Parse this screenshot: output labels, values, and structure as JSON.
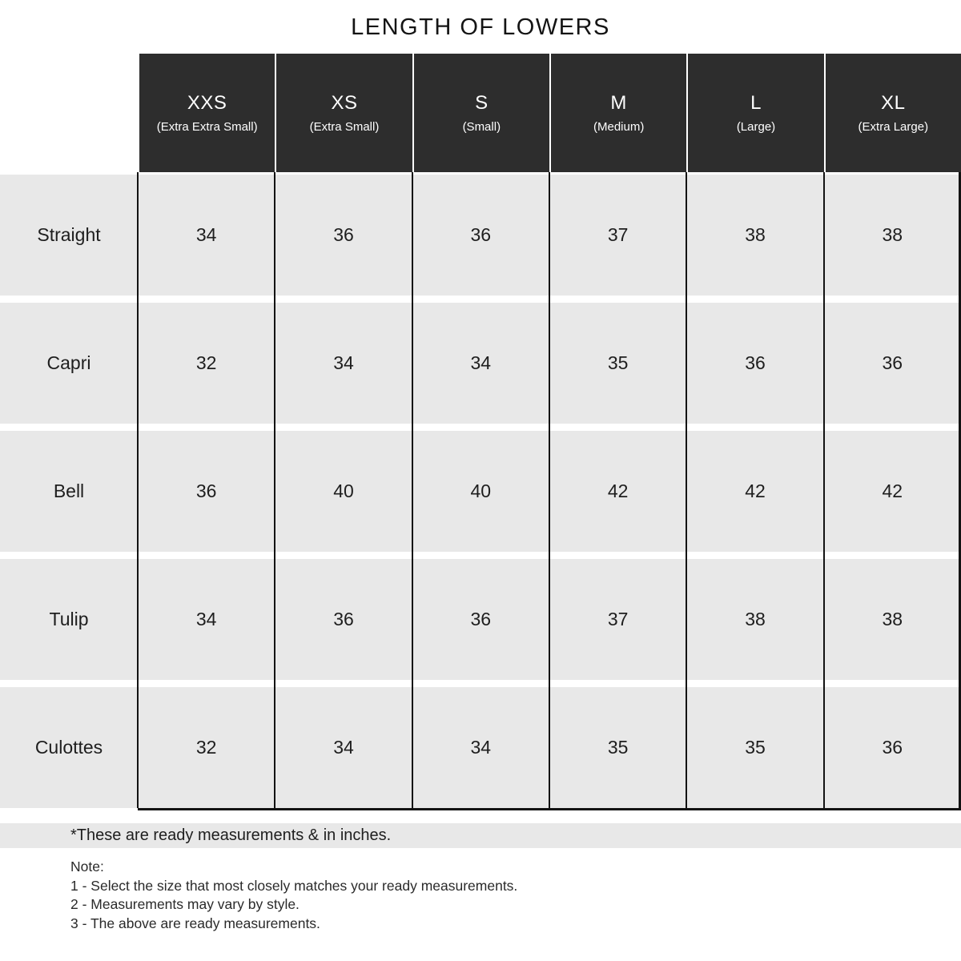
{
  "title": "LENGTH OF LOWERS",
  "table": {
    "columns": [
      {
        "size": "XXS",
        "full": "(Extra Extra Small)"
      },
      {
        "size": "XS",
        "full": "(Extra Small)"
      },
      {
        "size": "S",
        "full": "(Small)"
      },
      {
        "size": "M",
        "full": "(Medium)"
      },
      {
        "size": "L",
        "full": "(Large)"
      },
      {
        "size": "XL",
        "full": "(Extra Large)"
      }
    ],
    "rows": [
      {
        "label": "Straight",
        "values": [
          "34",
          "36",
          "36",
          "37",
          "38",
          "38"
        ]
      },
      {
        "label": "Capri",
        "values": [
          "32",
          "34",
          "34",
          "35",
          "36",
          "36"
        ]
      },
      {
        "label": "Bell",
        "values": [
          "36",
          "40",
          "40",
          "42",
          "42",
          "42"
        ]
      },
      {
        "label": "Tulip",
        "values": [
          "34",
          "36",
          "36",
          "37",
          "38",
          "38"
        ]
      },
      {
        "label": "Culottes",
        "values": [
          "32",
          "34",
          "34",
          "35",
          "35",
          "36"
        ]
      }
    ]
  },
  "footnote": "*These are ready measurements & in inches.",
  "notes": {
    "heading": "Note:",
    "items": [
      "1 - Select the size that most closely matches your ready measurements.",
      "2 - Measurements may vary by style.",
      "3 - The above are ready measurements."
    ]
  },
  "colors": {
    "header_bg": "#2d2d2d",
    "header_text": "#ffffff",
    "row_bg": "#e8e8e8",
    "grid_line": "#131313",
    "footnote_band_bg": "#e8e8e8"
  },
  "chart_data": {
    "type": "table",
    "title": "LENGTH OF LOWERS",
    "unit": "inches",
    "categories": [
      "XXS",
      "XS",
      "S",
      "M",
      "L",
      "XL"
    ],
    "series": [
      {
        "name": "Straight",
        "values": [
          34,
          36,
          36,
          37,
          38,
          38
        ]
      },
      {
        "name": "Capri",
        "values": [
          32,
          34,
          34,
          35,
          36,
          36
        ]
      },
      {
        "name": "Bell",
        "values": [
          36,
          40,
          40,
          42,
          42,
          42
        ]
      },
      {
        "name": "Tulip",
        "values": [
          34,
          36,
          36,
          37,
          38,
          38
        ]
      },
      {
        "name": "Culottes",
        "values": [
          32,
          34,
          34,
          35,
          35,
          36
        ]
      }
    ]
  }
}
